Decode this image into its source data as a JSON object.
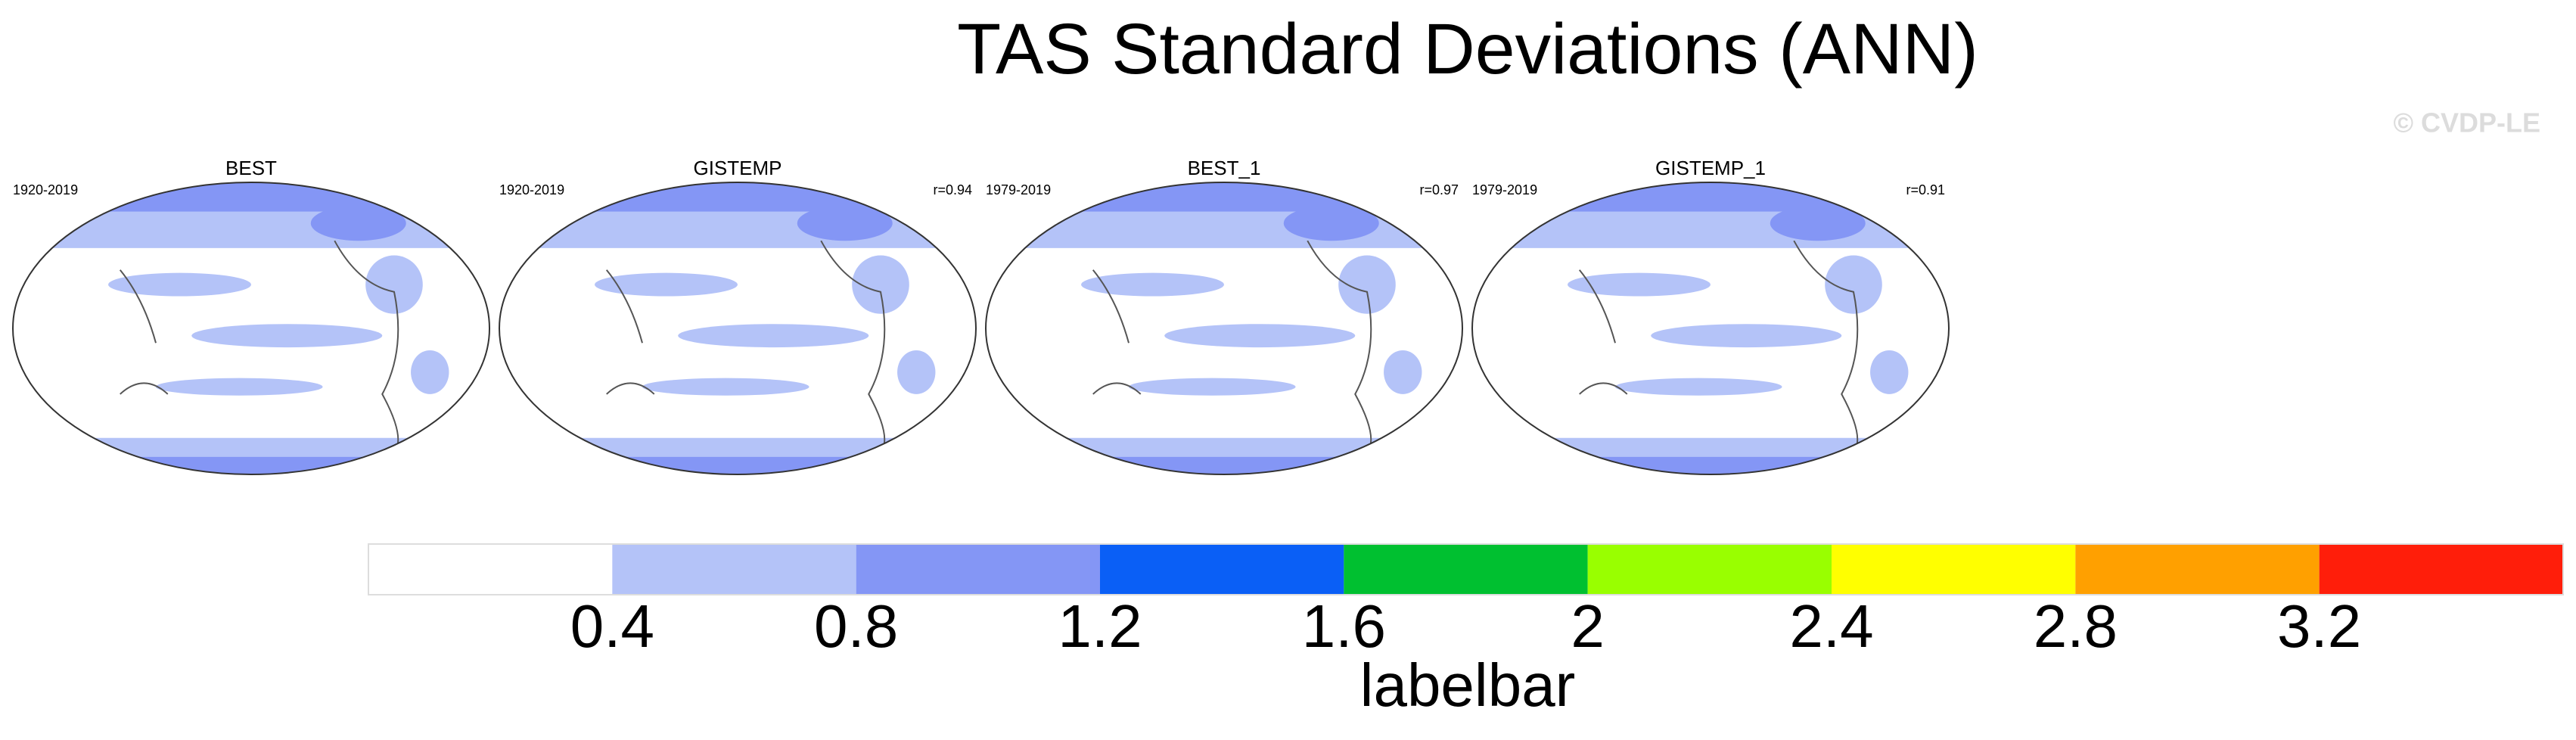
{
  "title": "TAS Standard Deviations (ANN)",
  "copyright": "© CVDP-LE",
  "panels": [
    {
      "title": "BEST",
      "period": "1920-2019"
    },
    {
      "title": "GISTEMP",
      "period": "1920-2019",
      "r": "r=0.94"
    },
    {
      "title": "BEST_1",
      "period": "1979-2019",
      "r": "r=0.97"
    },
    {
      "title": "GISTEMP_1",
      "period": "1979-2019",
      "r": "r=0.91"
    }
  ],
  "labelbar": {
    "label": "labelbar",
    "lim": [
      0,
      3.6
    ],
    "ticks": [
      0.4,
      0.8,
      1.2,
      1.6,
      2,
      2.4,
      2.8,
      3.2
    ],
    "colors": [
      "#ffffff",
      "#b4c3f8",
      "#8496f5",
      "#0a5ff6",
      "#00c030",
      "#99ff00",
      "#ffff00",
      "#ffa000",
      "#ff1e0a"
    ]
  }
}
